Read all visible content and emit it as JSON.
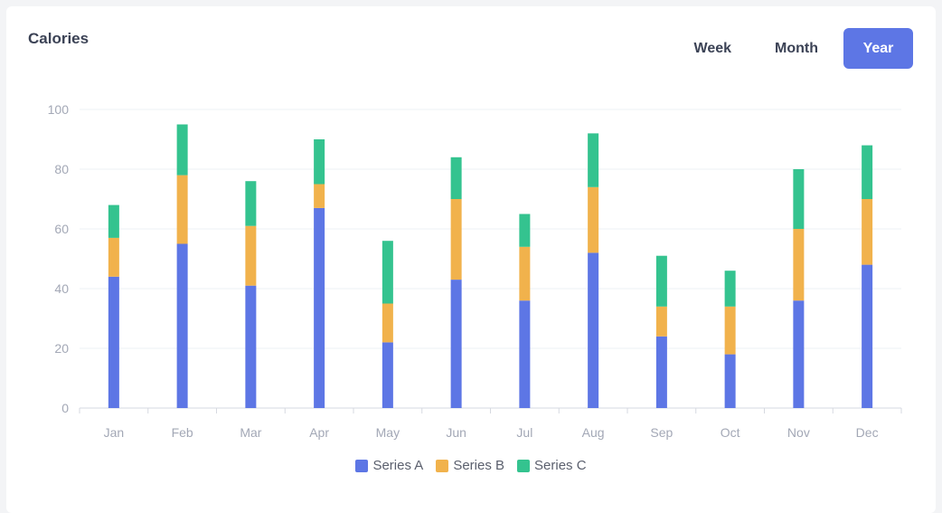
{
  "card": {
    "title": "Calories"
  },
  "tabs": [
    {
      "label": "Week",
      "active": false
    },
    {
      "label": "Month",
      "active": false
    },
    {
      "label": "Year",
      "active": true
    }
  ],
  "colors": {
    "series_a": "#5d76e5",
    "series_b": "#f1b24c",
    "series_c": "#34c38f",
    "grid": "#eef0f4",
    "axis": "#d6d9e0"
  },
  "chart_data": {
    "type": "bar",
    "stacked": true,
    "categories": [
      "Jan",
      "Feb",
      "Mar",
      "Apr",
      "May",
      "Jun",
      "Jul",
      "Aug",
      "Sep",
      "Oct",
      "Nov",
      "Dec"
    ],
    "series": [
      {
        "name": "Series A",
        "values": [
          44,
          55,
          41,
          67,
          22,
          43,
          36,
          52,
          24,
          18,
          36,
          48
        ]
      },
      {
        "name": "Series B",
        "values": [
          13,
          23,
          20,
          8,
          13,
          27,
          18,
          22,
          10,
          16,
          24,
          22
        ]
      },
      {
        "name": "Series C",
        "values": [
          11,
          17,
          15,
          15,
          21,
          14,
          11,
          18,
          17,
          12,
          20,
          18
        ]
      }
    ],
    "yticks": [
      0,
      20,
      40,
      60,
      80,
      100
    ],
    "ylim": [
      0,
      100
    ],
    "grid": true,
    "legend": "bottom-center",
    "title": "Calories"
  }
}
